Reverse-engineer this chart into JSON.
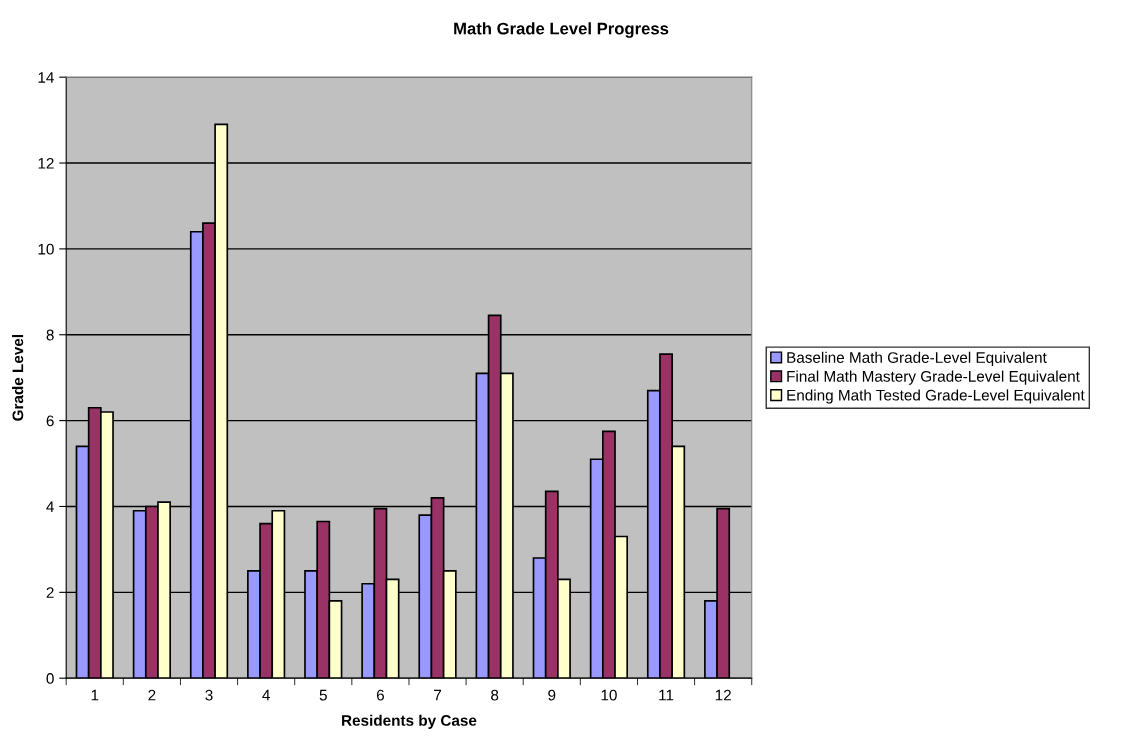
{
  "chart_data": {
    "type": "bar",
    "title": "Math Grade Level Progress",
    "xlabel": "Residents by Case",
    "ylabel": "Grade Level",
    "categories": [
      "1",
      "2",
      "3",
      "4",
      "5",
      "6",
      "7",
      "8",
      "9",
      "10",
      "11",
      "12"
    ],
    "series": [
      {
        "name": "Baseline Math Grade-Level Equivalent",
        "color": "#9999ff",
        "values": [
          5.4,
          3.9,
          10.4,
          2.5,
          2.5,
          2.2,
          3.8,
          7.1,
          2.8,
          5.1,
          6.7,
          1.8
        ]
      },
      {
        "name": "Final Math Mastery Grade-Level Equivalent",
        "color": "#993366",
        "values": [
          6.3,
          4.0,
          10.6,
          3.6,
          3.65,
          3.95,
          4.2,
          8.45,
          4.35,
          5.75,
          7.55,
          3.95
        ]
      },
      {
        "name": "Ending Math Tested Grade-Level Equivalent",
        "color": "#ffffcc",
        "values": [
          6.2,
          4.1,
          12.9,
          3.9,
          1.8,
          2.3,
          2.5,
          7.1,
          2.3,
          3.3,
          5.4,
          null
        ]
      }
    ],
    "ylim": [
      0,
      14
    ],
    "yticks": [
      0,
      2,
      4,
      6,
      8,
      10,
      12,
      14
    ],
    "grid": "y",
    "legend": "right"
  }
}
